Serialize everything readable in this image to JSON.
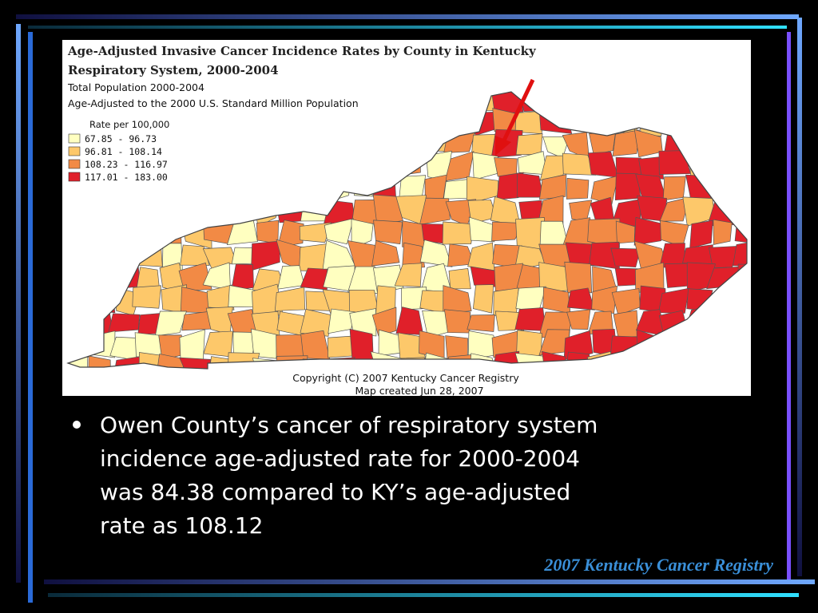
{
  "map": {
    "title_lines": [
      "Age-Adjusted Invasive Cancer Incidence Rates by County in Kentucky",
      "Respiratory System, 2000-2004"
    ],
    "subtitle_lines": [
      "Total Population 2000-2004",
      "Age-Adjusted to the 2000 U.S. Standard Million Population"
    ],
    "legend": {
      "title": "Rate per 100,000",
      "items": [
        {
          "label": "67.85 - 96.73",
          "color": "#ffffc0"
        },
        {
          "label": "96.81 - 108.14",
          "color": "#fdc86a"
        },
        {
          "label": "108.23 - 116.97",
          "color": "#f28a45"
        },
        {
          "label": "117.01 - 183.00",
          "color": "#e0202a"
        }
      ]
    },
    "credits": [
      "Copyright (C) 2007 Kentucky Cancer Registry",
      "Map created Jun 28, 2007"
    ]
  },
  "bullet": {
    "lines": [
      "Owen County’s cancer of respiratory system",
      "incidence age-adjusted rate for 2000-2004",
      "was 84.38 compared to KY’s age-adjusted",
      "rate as 108.12"
    ]
  },
  "footer": "2007 Kentucky Cancer Registry"
}
